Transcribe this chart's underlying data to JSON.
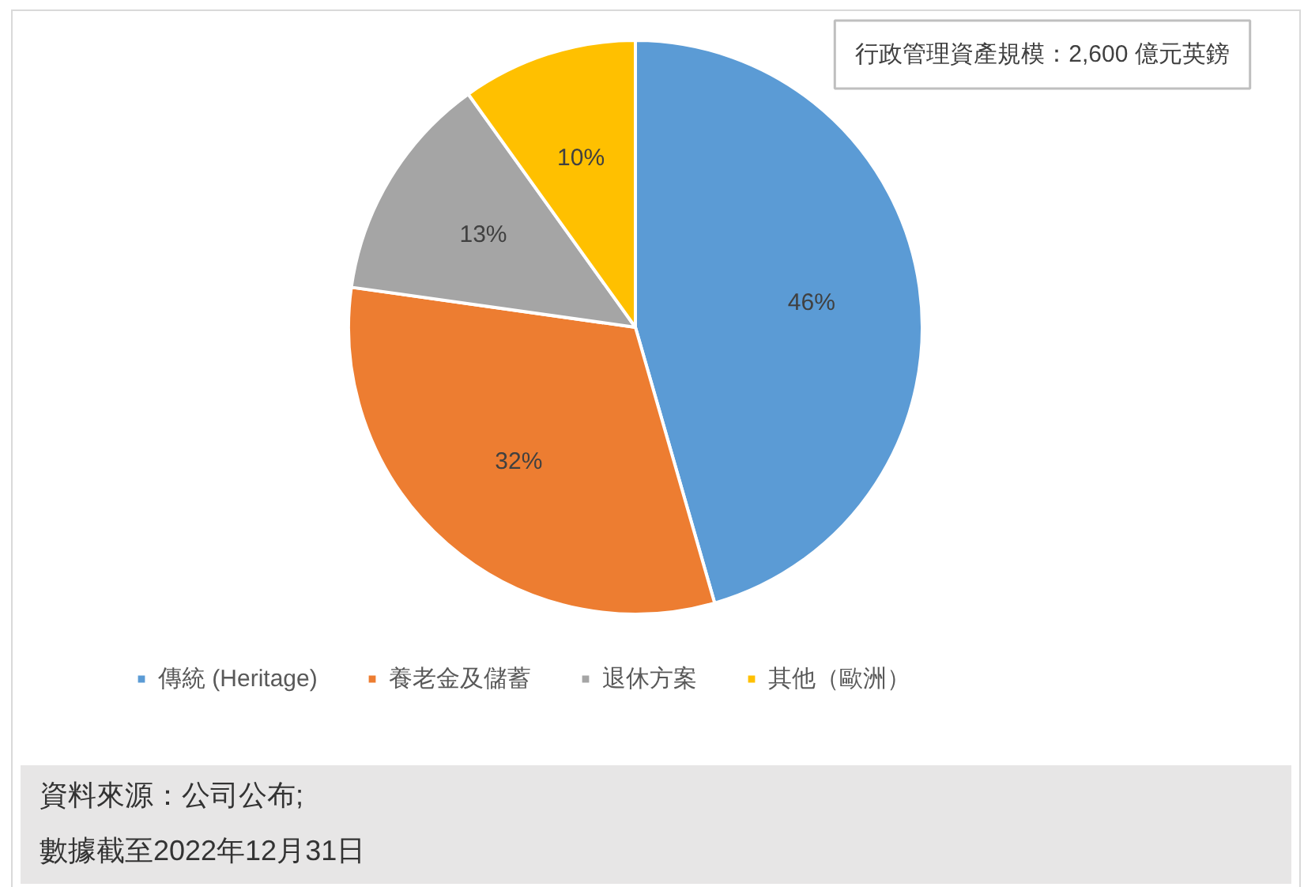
{
  "chart_data": {
    "type": "pie",
    "categories": [
      "傳統 (Heritage)",
      "養老金及儲蓄",
      "退休方案",
      "其他（歐洲）"
    ],
    "values": [
      46,
      32,
      13,
      10
    ],
    "colors": [
      "#5b9bd5",
      "#ed7d31",
      "#a5a5a5",
      "#ffc000"
    ],
    "value_labels": [
      "46%",
      "32%",
      "13%",
      "10%"
    ],
    "legend": "bottom",
    "annotations": [
      "行政管理資產規模：2,600 億元英鎊",
      "資料來源：公司公布;",
      "數據截至2022年12月31日"
    ]
  }
}
